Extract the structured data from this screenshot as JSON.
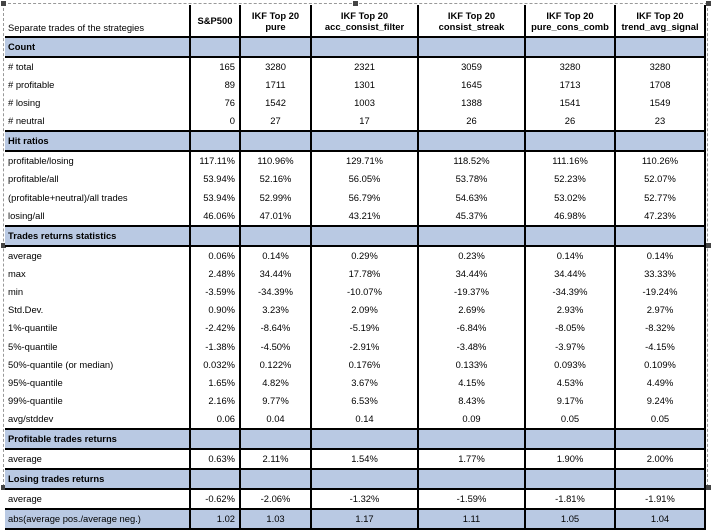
{
  "header": {
    "label": "Separate trades of the strategies",
    "columns": [
      [
        "S&P500",
        ""
      ],
      [
        "IKF Top 20",
        "pure"
      ],
      [
        "IKF Top 20",
        "acc_consist_filter"
      ],
      [
        "IKF Top 20",
        "consist_streak"
      ],
      [
        "IKF Top 20",
        "pure_cons_comb"
      ],
      [
        "IKF Top 20",
        "trend_avg_signal"
      ]
    ]
  },
  "sections": [
    {
      "title": "Count",
      "rows": [
        {
          "label": "# total",
          "values": [
            "165",
            "3280",
            "2321",
            "3059",
            "3280",
            "3280"
          ]
        },
        {
          "label": "# profitable",
          "values": [
            "89",
            "1711",
            "1301",
            "1645",
            "1713",
            "1708"
          ]
        },
        {
          "label": "# losing",
          "values": [
            "76",
            "1542",
            "1003",
            "1388",
            "1541",
            "1549"
          ]
        },
        {
          "label": "# neutral",
          "values": [
            "0",
            "27",
            "17",
            "26",
            "26",
            "23"
          ]
        }
      ]
    },
    {
      "title": "Hit ratios",
      "rows": [
        {
          "label": "profitable/losing",
          "values": [
            "117.11%",
            "110.96%",
            "129.71%",
            "118.52%",
            "111.16%",
            "110.26%"
          ]
        },
        {
          "label": "profitable/all",
          "values": [
            "53.94%",
            "52.16%",
            "56.05%",
            "53.78%",
            "52.23%",
            "52.07%"
          ]
        },
        {
          "label": "(profitable+neutral)/all trades",
          "values": [
            "53.94%",
            "52.99%",
            "56.79%",
            "54.63%",
            "53.02%",
            "52.77%"
          ]
        },
        {
          "label": "losing/all",
          "values": [
            "46.06%",
            "47.01%",
            "43.21%",
            "45.37%",
            "46.98%",
            "47.23%"
          ]
        }
      ]
    },
    {
      "title": "Trades returns statistics",
      "rows": [
        {
          "label": "average",
          "values": [
            "0.06%",
            "0.14%",
            "0.29%",
            "0.23%",
            "0.14%",
            "0.14%"
          ]
        },
        {
          "label": "max",
          "values": [
            "2.48%",
            "34.44%",
            "17.78%",
            "34.44%",
            "34.44%",
            "33.33%"
          ]
        },
        {
          "label": "min",
          "values": [
            "-3.59%",
            "-34.39%",
            "-10.07%",
            "-19.37%",
            "-34.39%",
            "-19.24%"
          ]
        },
        {
          "label": "Std.Dev.",
          "values": [
            "0.90%",
            "3.23%",
            "2.09%",
            "2.69%",
            "2.93%",
            "2.97%"
          ]
        },
        {
          "label": "1%-quantile",
          "values": [
            "-2.42%",
            "-8.64%",
            "-5.19%",
            "-6.84%",
            "-8.05%",
            "-8.32%"
          ]
        },
        {
          "label": "5%-quantile",
          "values": [
            "-1.38%",
            "-4.50%",
            "-2.91%",
            "-3.48%",
            "-3.97%",
            "-4.15%"
          ]
        },
        {
          "label": "50%-quantile (or median)",
          "values": [
            "0.032%",
            "0.122%",
            "0.176%",
            "0.133%",
            "0.093%",
            "0.109%"
          ]
        },
        {
          "label": "95%-quantile",
          "values": [
            "1.65%",
            "4.82%",
            "3.67%",
            "4.15%",
            "4.53%",
            "4.49%"
          ]
        },
        {
          "label": "99%-quantile",
          "values": [
            "2.16%",
            "9.77%",
            "6.53%",
            "8.43%",
            "9.17%",
            "9.24%"
          ]
        },
        {
          "label": "avg/stddev",
          "values": [
            "0.06",
            "0.04",
            "0.14",
            "0.09",
            "0.05",
            "0.05"
          ]
        }
      ]
    },
    {
      "title": "Profitable trades returns",
      "rows": [
        {
          "label": "average",
          "values": [
            "0.63%",
            "2.11%",
            "1.54%",
            "1.77%",
            "1.90%",
            "2.00%"
          ]
        }
      ]
    },
    {
      "title": "Losing trades returns",
      "rows": [
        {
          "label": "average",
          "values": [
            "-0.62%",
            "-2.06%",
            "-1.32%",
            "-1.59%",
            "-1.81%",
            "-1.91%"
          ]
        }
      ]
    }
  ],
  "footer_row": {
    "label": "abs(average pos./average neg.)",
    "values": [
      "1.02",
      "1.03",
      "1.17",
      "1.11",
      "1.05",
      "1.04"
    ]
  }
}
